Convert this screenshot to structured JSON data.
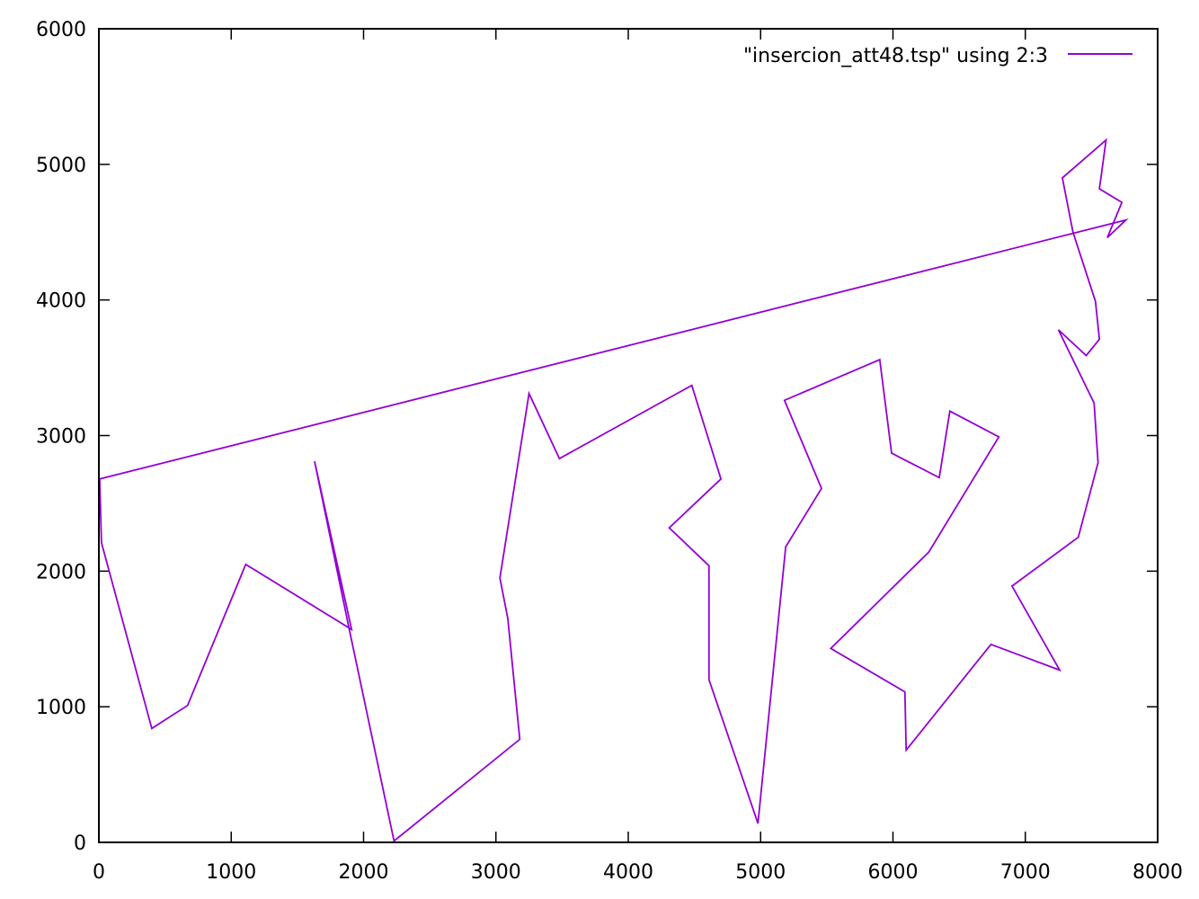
{
  "chart_data": {
    "type": "line",
    "title": "",
    "xlabel": "",
    "ylabel": "",
    "xlim": [
      0,
      8000
    ],
    "ylim": [
      0,
      6000
    ],
    "xticks": [
      0,
      1000,
      2000,
      3000,
      4000,
      5000,
      6000,
      7000,
      8000
    ],
    "yticks": [
      0,
      1000,
      2000,
      3000,
      4000,
      5000,
      6000
    ],
    "grid": false,
    "legend_position": "top-right",
    "series": [
      {
        "name": "\"insercion_att48.tsp\" using 2:3",
        "color": "#9400d3",
        "points": [
          [
            6,
            2680
          ],
          [
            20,
            2210
          ],
          [
            400,
            840
          ],
          [
            670,
            1010
          ],
          [
            1110,
            2050
          ],
          [
            1910,
            1570
          ],
          [
            1630,
            2810
          ],
          [
            1890,
            1580
          ],
          [
            2230,
            10
          ],
          [
            3180,
            760
          ],
          [
            3090,
            1650
          ],
          [
            3030,
            1950
          ],
          [
            3250,
            3310
          ],
          [
            3480,
            2830
          ],
          [
            4480,
            3370
          ],
          [
            4700,
            2680
          ],
          [
            4310,
            2320
          ],
          [
            4610,
            2040
          ],
          [
            4610,
            1200
          ],
          [
            4980,
            140
          ],
          [
            5190,
            2180
          ],
          [
            5460,
            2610
          ],
          [
            5180,
            3260
          ],
          [
            5900,
            3560
          ],
          [
            5990,
            2870
          ],
          [
            6350,
            2690
          ],
          [
            6430,
            3180
          ],
          [
            6800,
            2990
          ],
          [
            6270,
            2140
          ],
          [
            5530,
            1430
          ],
          [
            6090,
            1110
          ],
          [
            6100,
            680
          ],
          [
            6740,
            1460
          ],
          [
            7260,
            1270
          ],
          [
            6900,
            1890
          ],
          [
            7400,
            2250
          ],
          [
            7550,
            2800
          ],
          [
            7520,
            3240
          ],
          [
            7250,
            3780
          ],
          [
            7460,
            3590
          ],
          [
            7560,
            3710
          ],
          [
            7530,
            3990
          ],
          [
            7360,
            4500
          ],
          [
            7280,
            4900
          ],
          [
            7610,
            5180
          ],
          [
            7560,
            4820
          ],
          [
            7730,
            4720
          ],
          [
            7620,
            4460
          ],
          [
            7760,
            4590
          ],
          [
            6,
            2680
          ]
        ]
      }
    ]
  }
}
